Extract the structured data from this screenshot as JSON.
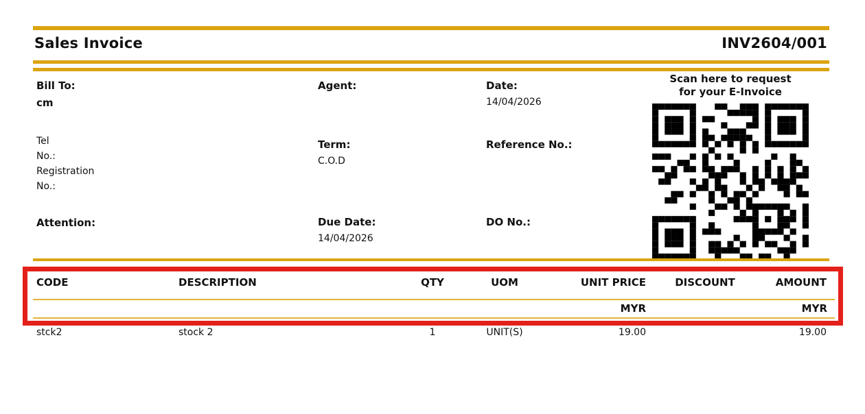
{
  "colors": {
    "gold": "#DBA410",
    "highlight_red": "#E3211A"
  },
  "header": {
    "title": "Sales Invoice",
    "invoice_number": "INV2604/001"
  },
  "info": {
    "bill_to_label": "Bill To:",
    "bill_to_value": "cm",
    "tel_label": "Tel\nNo.:",
    "registration_label": "Registration\nNo.:",
    "attention_label": "Attention:",
    "agent_label": "Agent:",
    "term_label": "Term:",
    "term_value": "C.O.D",
    "due_date_label": "Due Date:",
    "due_date_value": "14/04/2026",
    "date_label": "Date:",
    "date_value": "14/04/2026",
    "reference_label": "Reference No.:",
    "do_label": "DO No.:"
  },
  "qr": {
    "caption": "Scan here to request\nfor your E-Invoice"
  },
  "table": {
    "columns": {
      "code": "CODE",
      "description": "DESCRIPTION",
      "qty": "QTY",
      "uom": "UOM",
      "unit_price": "UNIT PRICE",
      "discount": "DISCOUNT",
      "amount": "AMOUNT"
    },
    "currency_row": {
      "unit_price": "MYR",
      "amount": "MYR"
    },
    "rows": [
      {
        "code": "stck2",
        "description": "stock 2",
        "qty": "1",
        "uom": "UNIT(S)",
        "unit_price": "19.00",
        "discount": "",
        "amount": "19.00"
      }
    ]
  }
}
